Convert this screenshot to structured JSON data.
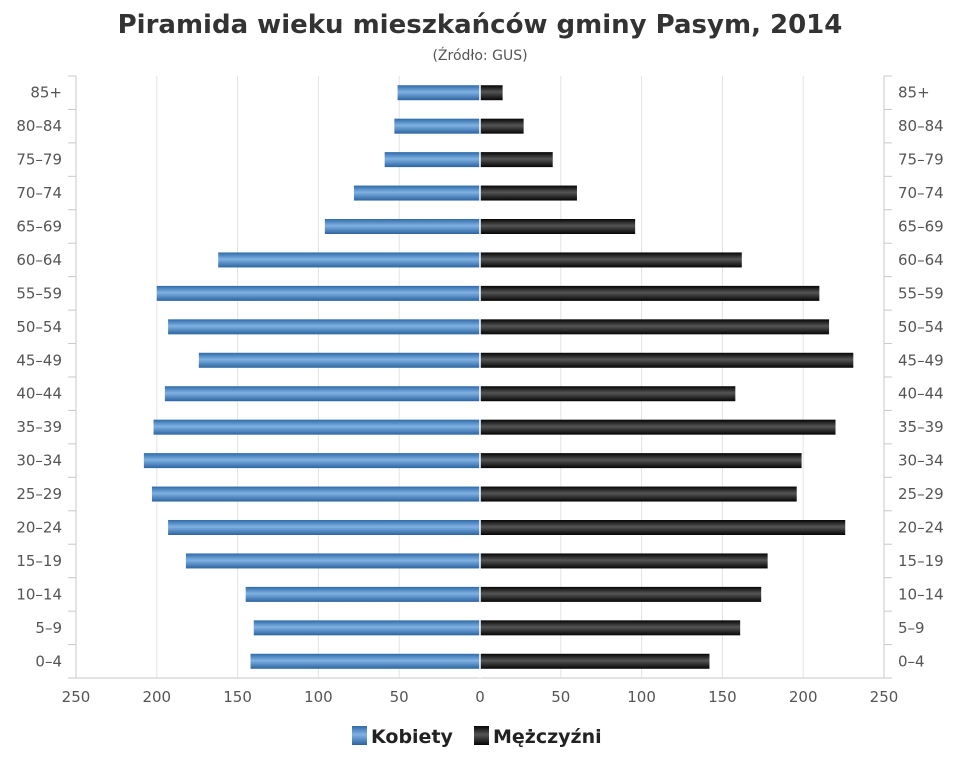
{
  "chart_data": {
    "type": "bar",
    "orientation": "horizontal-population-pyramid",
    "title": "Piramida wieku mieszkańców gminy Pasym, 2014",
    "subtitle": "(Źródło: GUS)",
    "categories": [
      "0–4",
      "5–9",
      "10–14",
      "15–19",
      "20–24",
      "25–29",
      "30–34",
      "35–39",
      "40–44",
      "45–49",
      "50–54",
      "55–59",
      "60–64",
      "65–69",
      "70–74",
      "75–79",
      "80–84",
      "85+"
    ],
    "series": [
      {
        "name": "Kobiety",
        "color": "#4a88c7",
        "side": "left",
        "values": [
          142,
          140,
          145,
          182,
          193,
          203,
          208,
          202,
          195,
          174,
          193,
          200,
          162,
          96,
          78,
          59,
          53,
          51
        ]
      },
      {
        "name": "Mężczyźni",
        "color": "#222222",
        "side": "right",
        "values": [
          142,
          161,
          174,
          178,
          226,
          196,
          199,
          220,
          158,
          231,
          216,
          210,
          162,
          96,
          60,
          45,
          27,
          14
        ]
      }
    ],
    "xlim": [
      -250,
      250
    ],
    "x_ticks": [
      "250",
      "200",
      "150",
      "100",
      "50",
      "0",
      "50",
      "100",
      "150",
      "200",
      "250"
    ],
    "grid": true,
    "legend": "bottom-center"
  }
}
